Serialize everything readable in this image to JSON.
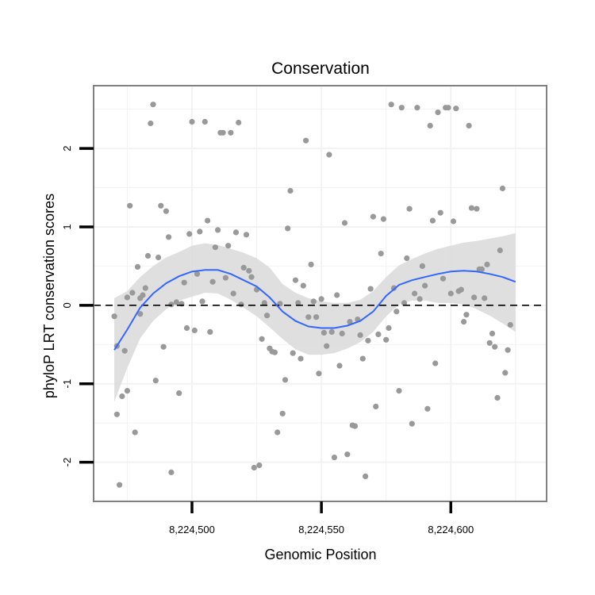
{
  "chart_data": {
    "type": "scatter",
    "title": "Conservation",
    "xlabel": "Genomic Position",
    "ylabel": "phyloP LRT conservation scores",
    "xlim": [
      8224462,
      8224637
    ],
    "ylim": [
      -2.5,
      2.8
    ],
    "x_ticks": [
      8224500,
      8224550,
      8224600
    ],
    "x_tick_labels": [
      "8,224,500",
      "8,224,550",
      "8,224,600"
    ],
    "y_ticks": [
      -2,
      -1,
      0,
      1,
      2
    ],
    "y_tick_labels": [
      "-2",
      "-1",
      "0",
      "1",
      "2"
    ],
    "reference_line": {
      "y": 0,
      "style": "dashed",
      "color": "#000000"
    },
    "grid": true,
    "colors": {
      "points": "#999999",
      "smooth_line": "#3366ff",
      "confidence_band": "#d9d9d9",
      "panel_border": "#808080",
      "gridline": "#f2f2f2"
    },
    "points": [
      [
        8224470,
        -0.14
      ],
      [
        8224471,
        -1.39
      ],
      [
        8224471,
        -0.52
      ],
      [
        8224472,
        -2.29
      ],
      [
        8224473,
        -1.16
      ],
      [
        8224474,
        -0.58
      ],
      [
        8224475,
        -1.09
      ],
      [
        8224475,
        0.1
      ],
      [
        8224476,
        1.27
      ],
      [
        8224477,
        0.16
      ],
      [
        8224478,
        -1.62
      ],
      [
        8224479,
        0.49
      ],
      [
        8224480,
        -0.11
      ],
      [
        8224480,
        0.09
      ],
      [
        8224481,
        0.13
      ],
      [
        8224482,
        0.22
      ],
      [
        8224483,
        0.63
      ],
      [
        8224484,
        2.32
      ],
      [
        8224485,
        2.56
      ],
      [
        8224486,
        -0.96
      ],
      [
        8224487,
        0.61
      ],
      [
        8224488,
        1.27
      ],
      [
        8224489,
        -0.53
      ],
      [
        8224490,
        1.2
      ],
      [
        8224491,
        0.87
      ],
      [
        8224492,
        -2.13
      ],
      [
        8224492,
        0.01
      ],
      [
        8224494,
        0.04
      ],
      [
        8224495,
        -1.12
      ],
      [
        8224496,
        0.02
      ],
      [
        8224497,
        0.29
      ],
      [
        8224498,
        -0.29
      ],
      [
        8224499,
        0.91
      ],
      [
        8224500,
        2.34
      ],
      [
        8224501,
        -0.32
      ],
      [
        8224502,
        0.4
      ],
      [
        8224503,
        0.94
      ],
      [
        8224504,
        0.05
      ],
      [
        8224505,
        2.34
      ],
      [
        8224506,
        1.08
      ],
      [
        8224507,
        -0.34
      ],
      [
        8224508,
        0.3
      ],
      [
        8224509,
        0.74
      ],
      [
        8224510,
        0.96
      ],
      [
        8224511,
        2.2
      ],
      [
        8224512,
        2.2
      ],
      [
        8224513,
        0.35
      ],
      [
        8224514,
        0.76
      ],
      [
        8224515,
        2.2
      ],
      [
        8224516,
        0.15
      ],
      [
        8224517,
        0.93
      ],
      [
        8224518,
        2.33
      ],
      [
        8224519,
        0.01
      ],
      [
        8224520,
        0.48
      ],
      [
        8224521,
        0.9
      ],
      [
        8224522,
        0.44
      ],
      [
        8224523,
        0.36
      ],
      [
        8224524,
        -2.07
      ],
      [
        8224525,
        0.2
      ],
      [
        8224526,
        -2.04
      ],
      [
        8224527,
        -0.43
      ],
      [
        8224528,
        0.03
      ],
      [
        8224529,
        -0.13
      ],
      [
        8224530,
        -0.55
      ],
      [
        8224531,
        -0.59
      ],
      [
        8224532,
        -0.6
      ],
      [
        8224533,
        -1.62
      ],
      [
        8224534,
        0.02
      ],
      [
        8224535,
        -1.38
      ],
      [
        8224536,
        -0.95
      ],
      [
        8224537,
        0.98
      ],
      [
        8224538,
        1.46
      ],
      [
        8224539,
        -0.61
      ],
      [
        8224540,
        0.32
      ],
      [
        8224541,
        0.03
      ],
      [
        8224542,
        -0.68
      ],
      [
        8224543,
        0.25
      ],
      [
        8224544,
        2.1
      ],
      [
        8224545,
        -0.15
      ],
      [
        8224546,
        0.52
      ],
      [
        8224547,
        0.05
      ],
      [
        8224548,
        -0.15
      ],
      [
        8224549,
        -0.87
      ],
      [
        8224550,
        0.08
      ],
      [
        8224551,
        -0.35
      ],
      [
        8224552,
        -0.52
      ],
      [
        8224553,
        1.92
      ],
      [
        8224554,
        -0.34
      ],
      [
        8224555,
        -1.94
      ],
      [
        8224556,
        0.13
      ],
      [
        8224557,
        -0.77
      ],
      [
        8224558,
        -0.36
      ],
      [
        8224559,
        1.05
      ],
      [
        8224560,
        -1.9
      ],
      [
        8224561,
        -0.21
      ],
      [
        8224562,
        -1.53
      ],
      [
        8224563,
        -1.54
      ],
      [
        8224564,
        -0.18
      ],
      [
        8224565,
        -0.38
      ],
      [
        8224566,
        -0.68
      ],
      [
        8224567,
        -2.18
      ],
      [
        8224568,
        -0.45
      ],
      [
        8224569,
        0.21
      ],
      [
        8224570,
        1.13
      ],
      [
        8224571,
        -1.29
      ],
      [
        8224572,
        -0.37
      ],
      [
        8224573,
        0.66
      ],
      [
        8224574,
        1.1
      ],
      [
        8224575,
        -0.44
      ],
      [
        8224576,
        -0.29
      ],
      [
        8224577,
        2.56
      ],
      [
        8224578,
        0.22
      ],
      [
        8224579,
        -0.08
      ],
      [
        8224580,
        -1.09
      ],
      [
        8224581,
        2.52
      ],
      [
        8224582,
        0.03
      ],
      [
        8224583,
        0.6
      ],
      [
        8224584,
        1.23
      ],
      [
        8224585,
        -1.51
      ],
      [
        8224586,
        0.15
      ],
      [
        8224587,
        2.52
      ],
      [
        8224588,
        0.08
      ],
      [
        8224589,
        0.5
      ],
      [
        8224590,
        0.25
      ],
      [
        8224591,
        -1.32
      ],
      [
        8224592,
        2.29
      ],
      [
        8224593,
        1.08
      ],
      [
        8224594,
        -0.74
      ],
      [
        8224595,
        2.46
      ],
      [
        8224596,
        1.18
      ],
      [
        8224597,
        0.34
      ],
      [
        8224598,
        2.52
      ],
      [
        8224599,
        2.52
      ],
      [
        8224600,
        0.15
      ],
      [
        8224601,
        1.07
      ],
      [
        8224602,
        2.51
      ],
      [
        8224603,
        0.18
      ],
      [
        8224604,
        0.2
      ],
      [
        8224605,
        -0.21
      ],
      [
        8224606,
        -0.12
      ],
      [
        8224607,
        2.29
      ],
      [
        8224608,
        1.24
      ],
      [
        8224609,
        0.1
      ],
      [
        8224610,
        1.23
      ],
      [
        8224611,
        0.46
      ],
      [
        8224612,
        0.46
      ],
      [
        8224613,
        0.09
      ],
      [
        8224614,
        0.52
      ],
      [
        8224615,
        -0.48
      ],
      [
        8224616,
        -0.36
      ],
      [
        8224617,
        -0.53
      ],
      [
        8224618,
        -1.18
      ],
      [
        8224619,
        0.7
      ],
      [
        8224620,
        1.49
      ],
      [
        8224621,
        -0.86
      ],
      [
        8224622,
        -0.57
      ],
      [
        8224623,
        -0.25
      ]
    ],
    "smooth": {
      "x": [
        8224470,
        8224475,
        8224480,
        8224485,
        8224490,
        8224495,
        8224500,
        8224505,
        8224510,
        8224515,
        8224520,
        8224525,
        8224530,
        8224535,
        8224540,
        8224545,
        8224550,
        8224555,
        8224560,
        8224565,
        8224570,
        8224575,
        8224580,
        8224585,
        8224590,
        8224595,
        8224600,
        8224605,
        8224610,
        8224615,
        8224620,
        8224625
      ],
      "y": [
        -0.57,
        -0.31,
        -0.03,
        0.15,
        0.28,
        0.37,
        0.43,
        0.45,
        0.45,
        0.4,
        0.32,
        0.24,
        0.1,
        -0.08,
        -0.2,
        -0.27,
        -0.29,
        -0.29,
        -0.26,
        -0.2,
        -0.08,
        0.12,
        0.26,
        0.32,
        0.36,
        0.4,
        0.43,
        0.44,
        0.43,
        0.4,
        0.36,
        0.3
      ],
      "ymin": [
        -1.23,
        -0.8,
        -0.42,
        -0.2,
        -0.05,
        0.06,
        0.11,
        0.16,
        0.15,
        0.07,
        -0.03,
        -0.14,
        -0.28,
        -0.43,
        -0.56,
        -0.63,
        -0.63,
        -0.61,
        -0.55,
        -0.47,
        -0.34,
        -0.14,
        0.01,
        0.06,
        0.06,
        0.03,
        0.03,
        0.01,
        -0.05,
        -0.13,
        -0.23,
        -0.34
      ],
      "ymax": [
        0.09,
        0.18,
        0.36,
        0.5,
        0.61,
        0.68,
        0.76,
        0.79,
        0.77,
        0.72,
        0.67,
        0.6,
        0.48,
        0.27,
        0.16,
        0.09,
        0.05,
        0.03,
        0.03,
        0.07,
        0.18,
        0.36,
        0.51,
        0.59,
        0.66,
        0.72,
        0.76,
        0.8,
        0.82,
        0.85,
        0.88,
        0.92
      ]
    }
  }
}
